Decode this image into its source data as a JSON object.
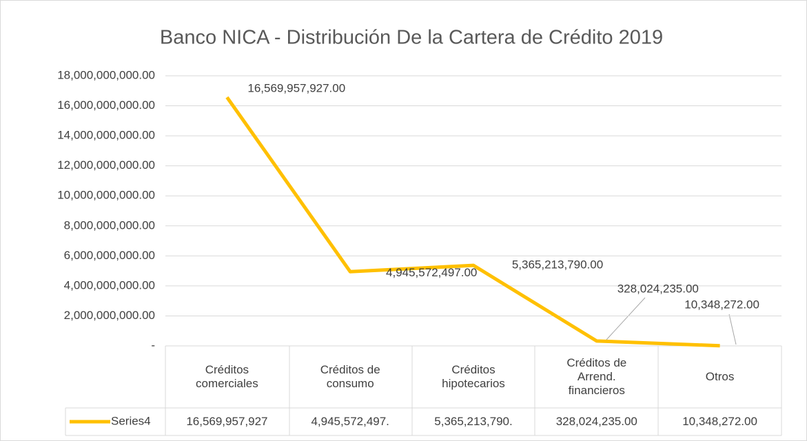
{
  "chart_data": {
    "type": "line",
    "title": "Banco NICA - Distribución De la Cartera de Crédito 2019",
    "categories": [
      "Créditos comerciales",
      "Créditos de consumo",
      "Créditos hipotecarios",
      "Créditos de Arrend. financieros",
      "Otros"
    ],
    "series": [
      {
        "name": "Series4",
        "color": "#ffc000",
        "values": [
          16569957927,
          4945572497,
          5365213790,
          328024235,
          10348272
        ],
        "value_labels": [
          "16,569,957,927.00",
          "4,945,572,497.00",
          "5,365,213,790.00",
          "328,024,235.00",
          "10,348,272.00"
        ],
        "table_value_labels": [
          "16,569,957,927",
          "4,945,572,497.",
          "5,365,213,790.",
          "328,024,235.00",
          "10,348,272.00"
        ]
      }
    ],
    "ylim": [
      0,
      18000000000
    ],
    "yticks": [
      {
        "value": 0,
        "label": "-"
      },
      {
        "value": 2000000000,
        "label": "2,000,000,000.00"
      },
      {
        "value": 4000000000,
        "label": "4,000,000,000.00"
      },
      {
        "value": 6000000000,
        "label": "6,000,000,000.00"
      },
      {
        "value": 8000000000,
        "label": "8,000,000,000.00"
      },
      {
        "value": 10000000000,
        "label": "10,000,000,000.00"
      },
      {
        "value": 12000000000,
        "label": "12,000,000,000.00"
      },
      {
        "value": 14000000000,
        "label": "14,000,000,000.00"
      },
      {
        "value": 16000000000,
        "label": "16,000,000,000.00"
      },
      {
        "value": 18000000000,
        "label": "18,000,000,000.00"
      }
    ],
    "grid": true
  }
}
